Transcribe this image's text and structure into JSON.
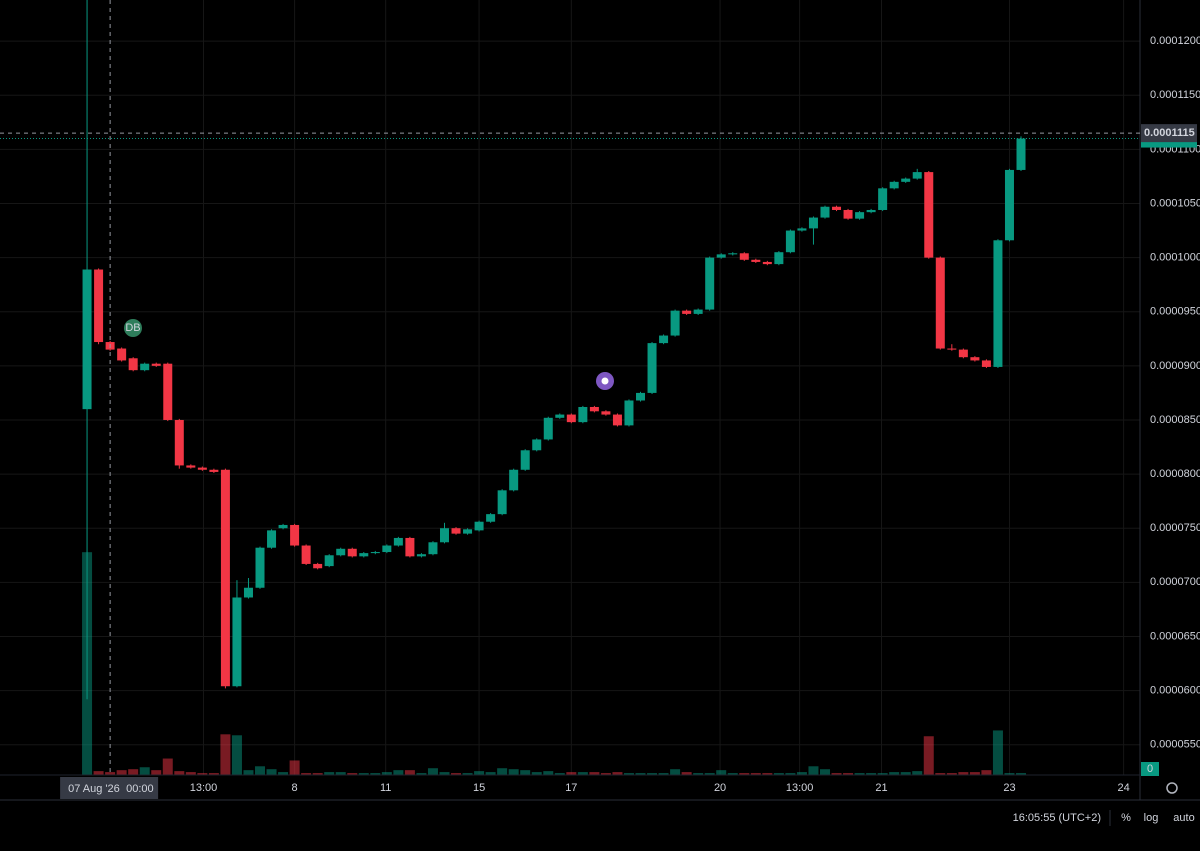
{
  "chart_data": {
    "type": "candlestick",
    "x": [
      0,
      1,
      2,
      3,
      4,
      5,
      6,
      7,
      8,
      9,
      10,
      11,
      12,
      13,
      14,
      15,
      16,
      17,
      18,
      19,
      20,
      21,
      22,
      23,
      24,
      25,
      26,
      27,
      28,
      29,
      30,
      31,
      32,
      33,
      34,
      35,
      36,
      37,
      38,
      39,
      40,
      41,
      42,
      43,
      44,
      45,
      46,
      47,
      48,
      49,
      50,
      51,
      52,
      53,
      54,
      55,
      56,
      57,
      58,
      59,
      60,
      61,
      62,
      63,
      64,
      65,
      66,
      67,
      68,
      69,
      70,
      71,
      72,
      73,
      74,
      75,
      76,
      77,
      78,
      79,
      80,
      81
    ],
    "open": [
      8.6e-05,
      9.89e-05,
      9.22e-05,
      9.16e-05,
      9.07e-05,
      8.96e-05,
      9.02e-05,
      9.02e-05,
      8.5e-05,
      8.08e-05,
      8.06e-05,
      8.04e-05,
      8.04e-05,
      6.04e-05,
      6.86e-05,
      6.95e-05,
      7.32e-05,
      7.5e-05,
      7.53e-05,
      7.34e-05,
      7.17e-05,
      7.15e-05,
      7.25e-05,
      7.31e-05,
      7.24e-05,
      7.27e-05,
      7.28e-05,
      7.34e-05,
      7.41e-05,
      7.24e-05,
      7.26e-05,
      7.37e-05,
      7.5e-05,
      7.45e-05,
      7.48e-05,
      7.56e-05,
      7.63e-05,
      7.85e-05,
      8.04e-05,
      8.22e-05,
      8.32e-05,
      8.52e-05,
      8.55e-05,
      8.48e-05,
      8.62e-05,
      8.58e-05,
      8.55e-05,
      8.45e-05,
      8.68e-05,
      8.75e-05,
      9.21e-05,
      9.28e-05,
      9.51e-05,
      9.48e-05,
      9.52e-05,
      0.0001,
      0.0001003,
      0.0001004,
      9.98e-05,
      9.96e-05,
      9.94e-05,
      0.0001005,
      0.0001025,
      0.0001027,
      0.0001037,
      0.0001047,
      0.0001044,
      0.0001036,
      0.0001042,
      0.0001044,
      0.0001064,
      0.000107,
      0.0001073,
      0.0001079,
      0.0001,
      9.16e-05,
      9.15e-05,
      9.08e-05,
      9.05e-05,
      8.99e-05,
      0.0001016,
      0.0001081
    ],
    "high": [
      0.000124,
      9.9e-05,
      9.23e-05,
      9.17e-05,
      9.08e-05,
      9.03e-05,
      9.03e-05,
      9.03e-05,
      8.51e-05,
      8.09e-05,
      8.07e-05,
      8.05e-05,
      8.05e-05,
      7.02e-05,
      7.04e-05,
      7.33e-05,
      7.49e-05,
      7.54e-05,
      7.54e-05,
      7.35e-05,
      7.18e-05,
      7.26e-05,
      7.32e-05,
      7.32e-05,
      7.28e-05,
      7.29e-05,
      7.35e-05,
      7.42e-05,
      7.42e-05,
      7.27e-05,
      7.38e-05,
      7.55e-05,
      7.51e-05,
      7.5e-05,
      7.57e-05,
      7.64e-05,
      7.86e-05,
      8.05e-05,
      8.23e-05,
      8.33e-05,
      8.53e-05,
      8.56e-05,
      8.56e-05,
      8.63e-05,
      8.63e-05,
      8.59e-05,
      8.56e-05,
      8.69e-05,
      8.76e-05,
      9.22e-05,
      9.29e-05,
      9.52e-05,
      9.52e-05,
      9.53e-05,
      0.0001001,
      0.0001004,
      0.0001005,
      0.0001005,
      9.99e-05,
      9.97e-05,
      0.0001006,
      0.0001026,
      0.0001028,
      0.0001038,
      0.0001048,
      0.0001048,
      0.0001045,
      0.0001043,
      0.0001045,
      0.0001065,
      0.0001071,
      0.0001074,
      0.0001082,
      0.000108,
      0.0001001,
      9.2e-05,
      9.16e-05,
      9.09e-05,
      9.06e-05,
      0.0001017,
      0.0001082,
      0.0001112
    ],
    "low": [
      5.92e-05,
      9.2e-05,
      9.14e-05,
      9.04e-05,
      8.95e-05,
      8.95e-05,
      8.99e-05,
      8.49e-05,
      8.05e-05,
      8.05e-05,
      8.03e-05,
      8.01e-05,
      6.02e-05,
      6.03e-05,
      6.85e-05,
      6.94e-05,
      7.31e-05,
      7.49e-05,
      7.33e-05,
      7.16e-05,
      7.12e-05,
      7.14e-05,
      7.24e-05,
      7.23e-05,
      7.23e-05,
      7.26e-05,
      7.27e-05,
      7.33e-05,
      7.23e-05,
      7.23e-05,
      7.25e-05,
      7.36e-05,
      7.44e-05,
      7.44e-05,
      7.47e-05,
      7.55e-05,
      7.62e-05,
      7.84e-05,
      8.03e-05,
      8.21e-05,
      8.31e-05,
      8.51e-05,
      8.47e-05,
      8.47e-05,
      8.57e-05,
      8.54e-05,
      8.44e-05,
      8.44e-05,
      8.67e-05,
      8.74e-05,
      9.2e-05,
      9.27e-05,
      9.47e-05,
      9.47e-05,
      9.51e-05,
      9.99e-05,
      0.0001002,
      9.97e-05,
      9.95e-05,
      9.93e-05,
      9.93e-05,
      0.0001004,
      0.0001024,
      0.0001012,
      0.0001036,
      0.0001043,
      0.0001035,
      0.0001035,
      0.0001041,
      0.0001043,
      0.0001063,
      0.0001069,
      0.0001072,
      9.99e-05,
      9.15e-05,
      9.14e-05,
      9.07e-05,
      9.04e-05,
      8.98e-05,
      8.98e-05,
      0.0001015,
      0.000108
    ],
    "close": [
      9.89e-05,
      9.22e-05,
      9.15e-05,
      9.05e-05,
      8.96e-05,
      9.02e-05,
      9e-05,
      8.5e-05,
      8.08e-05,
      8.06e-05,
      8.04e-05,
      8.02e-05,
      6.04e-05,
      6.86e-05,
      6.95e-05,
      7.32e-05,
      7.48e-05,
      7.53e-05,
      7.34e-05,
      7.17e-05,
      7.13e-05,
      7.25e-05,
      7.31e-05,
      7.24e-05,
      7.27e-05,
      7.28e-05,
      7.34e-05,
      7.41e-05,
      7.24e-05,
      7.26e-05,
      7.37e-05,
      7.5e-05,
      7.45e-05,
      7.49e-05,
      7.56e-05,
      7.63e-05,
      7.85e-05,
      8.04e-05,
      8.22e-05,
      8.32e-05,
      8.52e-05,
      8.55e-05,
      8.48e-05,
      8.62e-05,
      8.58e-05,
      8.55e-05,
      8.45e-05,
      8.68e-05,
      8.75e-05,
      9.21e-05,
      9.28e-05,
      9.51e-05,
      9.48e-05,
      9.52e-05,
      0.0001,
      0.0001003,
      0.0001004,
      9.98e-05,
      9.96e-05,
      9.94e-05,
      0.0001005,
      0.0001025,
      0.0001027,
      0.0001037,
      0.0001047,
      0.0001044,
      0.0001036,
      0.0001042,
      0.0001044,
      0.0001064,
      0.000107,
      0.0001073,
      0.0001079,
      0.0001,
      9.16e-05,
      9.15e-05,
      9.08e-05,
      9.05e-05,
      8.99e-05,
      0.0001016,
      0.0001081,
      0.000111
    ],
    "volume": [
      230,
      4,
      3,
      5,
      6,
      8,
      5,
      17,
      4,
      3,
      2,
      2,
      42,
      41,
      5,
      9,
      6,
      3,
      15,
      2,
      2,
      3,
      3,
      2,
      2,
      2,
      3,
      5,
      5,
      2,
      7,
      3,
      2,
      2,
      4,
      3,
      7,
      6,
      5,
      3,
      4,
      2,
      3,
      3,
      3,
      2,
      3,
      2,
      2,
      2,
      2,
      6,
      3,
      2,
      2,
      5,
      2,
      2,
      2,
      2,
      2,
      2,
      3,
      9,
      6,
      2,
      2,
      2,
      2,
      2,
      3,
      3,
      4,
      40,
      2,
      2,
      3,
      3,
      5,
      46,
      2,
      2
    ],
    "volume_lim": [
      0,
      800
    ],
    "volume_last": 0,
    "up_color": "#089981",
    "down_color": "#f23645",
    "grid": true,
    "xlim": [
      -7.55,
      91.32
    ],
    "ylim": [
      5.22e-05,
      0.0001238
    ],
    "xticks": [
      {
        "value": 10.1,
        "label": "13:00"
      },
      {
        "value": 18.0,
        "label": "8"
      },
      {
        "value": 25.9,
        "label": "11"
      },
      {
        "value": 34.0,
        "label": "15"
      },
      {
        "value": 42.0,
        "label": "17"
      },
      {
        "value": 54.9,
        "label": "20"
      },
      {
        "value": 61.8,
        "label": "13:00"
      },
      {
        "value": 68.9,
        "label": "21"
      },
      {
        "value": 80.0,
        "label": "23"
      },
      {
        "value": 89.9,
        "label": "24"
      }
    ],
    "yticks": [
      {
        "value": 0.00012,
        "label": "0.0001200"
      },
      {
        "value": 0.000115,
        "label": "0.0001150"
      },
      {
        "value": 0.00011,
        "label": "0.0001100"
      },
      {
        "value": 0.000105,
        "label": "0.0001050"
      },
      {
        "value": 0.0001,
        "label": "0.0001000"
      },
      {
        "value": 9.5e-05,
        "label": "0.0000950"
      },
      {
        "value": 9e-05,
        "label": "0.0000900"
      },
      {
        "value": 8.5e-05,
        "label": "0.0000850"
      },
      {
        "value": 8e-05,
        "label": "0.0000800"
      },
      {
        "value": 7.5e-05,
        "label": "0.0000750"
      },
      {
        "value": 7e-05,
        "label": "0.0000700"
      },
      {
        "value": 6.5e-05,
        "label": "0.0000650"
      },
      {
        "value": 6e-05,
        "label": "0.0000600"
      },
      {
        "value": 5.5e-05,
        "label": "0.0000550"
      }
    ],
    "crosshair": {
      "x": 2,
      "x_label": "07 Aug '26",
      "time_label": "00:00",
      "price": {
        "value": 0.0001115,
        "label": "0.0001115"
      }
    },
    "annotations": [
      {
        "label": "DB"
      }
    ],
    "status": {
      "time": "16:05:55 (UTC+2)",
      "percent": "%",
      "log": "log",
      "auto": "auto"
    }
  }
}
